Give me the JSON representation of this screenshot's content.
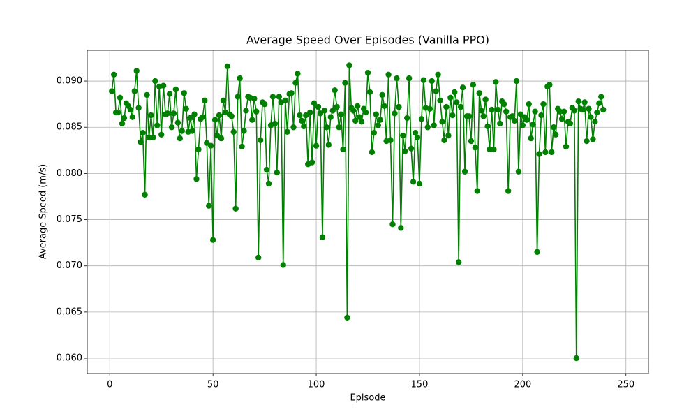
{
  "chart_data": {
    "type": "line",
    "title": "Average Speed Over Episodes (Vanilla PPO)",
    "x_label": "Episode",
    "y_label": "Average Speed (m/s)",
    "grid": true,
    "xlim": [
      -10.9,
      260.9
    ],
    "ylim": [
      0.05834,
      0.09333
    ],
    "xticks": [
      0,
      50,
      100,
      150,
      200,
      250
    ],
    "yticks": [
      {
        "value": 0.06,
        "label": "0.060"
      },
      0.065,
      {
        "value": 0.07,
        "label": "0.070"
      },
      0.075,
      {
        "value": 0.08,
        "label": "0.080"
      },
      0.085,
      {
        "value": 0.09,
        "label": "0.090"
      }
    ],
    "x": [
      1,
      2,
      3,
      4,
      5,
      6,
      7,
      8,
      9,
      10,
      11,
      12,
      13,
      14,
      15,
      16,
      17,
      18,
      19,
      20,
      21,
      22,
      23,
      24,
      25,
      26,
      27,
      28,
      29,
      30,
      31,
      32,
      33,
      34,
      35,
      36,
      37,
      38,
      39,
      40,
      41,
      42,
      43,
      44,
      45,
      46,
      47,
      48,
      49,
      50,
      51,
      52,
      53,
      54,
      55,
      56,
      57,
      58,
      59,
      60,
      61,
      62,
      63,
      64,
      65,
      66,
      67,
      68,
      69,
      70,
      71,
      72,
      73,
      74,
      75,
      76,
      77,
      78,
      79,
      80,
      81,
      82,
      83,
      84,
      85,
      86,
      87,
      88,
      89,
      90,
      91,
      92,
      93,
      94,
      95,
      96,
      97,
      98,
      99,
      100,
      101,
      102,
      103,
      104,
      105,
      106,
      107,
      108,
      109,
      110,
      111,
      112,
      113,
      114,
      115,
      116,
      117,
      118,
      119,
      120,
      121,
      122,
      123,
      124,
      125,
      126,
      127,
      128,
      129,
      130,
      131,
      132,
      133,
      134,
      135,
      136,
      137,
      138,
      139,
      140,
      141,
      142,
      143,
      144,
      145,
      146,
      147,
      148,
      149,
      150,
      151,
      152,
      153,
      154,
      155,
      156,
      157,
      158,
      159,
      160,
      161,
      162,
      163,
      164,
      165,
      166,
      167,
      168,
      169,
      170,
      171,
      172,
      173,
      174,
      175,
      176,
      177,
      178,
      179,
      180,
      181,
      182,
      183,
      184,
      185,
      186,
      187,
      188,
      189,
      190,
      191,
      192,
      193,
      194,
      195,
      196,
      197,
      198,
      199,
      200,
      201,
      202,
      203,
      204,
      205,
      206,
      207,
      208,
      209,
      210,
      211,
      212,
      213,
      214,
      215,
      216,
      217,
      218,
      219,
      220,
      221,
      222,
      223,
      224,
      225,
      226,
      227,
      228,
      229,
      230,
      231,
      232,
      233,
      234,
      235,
      236,
      237,
      238,
      239
    ],
    "series": [
      {
        "color": "#008000",
        "values": [
          0.0889,
          0.0907,
          0.0866,
          0.0866,
          0.0882,
          0.0854,
          0.086,
          0.0876,
          0.0873,
          0.0869,
          0.0861,
          0.0889,
          0.0911,
          0.0871,
          0.0834,
          0.0844,
          0.0777,
          0.0885,
          0.0839,
          0.0863,
          0.0839,
          0.09,
          0.0852,
          0.0894,
          0.0842,
          0.0895,
          0.0864,
          0.0865,
          0.0886,
          0.085,
          0.0865,
          0.0891,
          0.0855,
          0.0838,
          0.0846,
          0.0887,
          0.087,
          0.0845,
          0.086,
          0.0846,
          0.0864,
          0.0794,
          0.0826,
          0.0859,
          0.0861,
          0.0879,
          0.0833,
          0.0765,
          0.083,
          0.0728,
          0.0858,
          0.0841,
          0.0863,
          0.0838,
          0.0879,
          0.0866,
          0.0916,
          0.0864,
          0.0862,
          0.0845,
          0.0762,
          0.0883,
          0.0903,
          0.0829,
          0.0846,
          0.0868,
          0.0883,
          0.0882,
          0.0858,
          0.0881,
          0.0867,
          0.0709,
          0.0836,
          0.0877,
          0.0875,
          0.0804,
          0.0789,
          0.0852,
          0.0883,
          0.0854,
          0.0801,
          0.0883,
          0.0877,
          0.0701,
          0.0879,
          0.0845,
          0.0886,
          0.0887,
          0.085,
          0.0898,
          0.0908,
          0.0863,
          0.0857,
          0.0851,
          0.0863,
          0.081,
          0.0866,
          0.0812,
          0.0876,
          0.083,
          0.0872,
          0.0865,
          0.0731,
          0.0868,
          0.085,
          0.0831,
          0.0861,
          0.0868,
          0.089,
          0.0872,
          0.085,
          0.0864,
          0.0826,
          0.0898,
          0.0644,
          0.0917,
          0.0871,
          0.0868,
          0.0857,
          0.0873,
          0.0861,
          0.0856,
          0.087,
          0.0866,
          0.0909,
          0.0888,
          0.0823,
          0.0844,
          0.0864,
          0.0852,
          0.0858,
          0.0885,
          0.0873,
          0.0835,
          0.0907,
          0.0836,
          0.0745,
          0.0865,
          0.0903,
          0.0872,
          0.0741,
          0.0841,
          0.0824,
          0.086,
          0.0903,
          0.0827,
          0.0791,
          0.0844,
          0.0839,
          0.0789,
          0.0859,
          0.0901,
          0.0871,
          0.085,
          0.087,
          0.09,
          0.0852,
          0.0889,
          0.0907,
          0.0879,
          0.0856,
          0.0836,
          0.0872,
          0.0841,
          0.0882,
          0.0863,
          0.0888,
          0.0877,
          0.0704,
          0.0872,
          0.0893,
          0.0802,
          0.0862,
          0.0862,
          0.0835,
          0.0896,
          0.0828,
          0.0781,
          0.0887,
          0.0868,
          0.0862,
          0.088,
          0.0851,
          0.0826,
          0.0869,
          0.0826,
          0.0899,
          0.0869,
          0.0854,
          0.0878,
          0.0875,
          0.0867,
          0.0781,
          0.0861,
          0.0862,
          0.0857,
          0.09,
          0.0802,
          0.0864,
          0.0852,
          0.0861,
          0.0858,
          0.0875,
          0.0838,
          0.0853,
          0.0867,
          0.0715,
          0.0821,
          0.0863,
          0.0875,
          0.0823,
          0.0894,
          0.0896,
          0.0823,
          0.085,
          0.0842,
          0.087,
          0.0867,
          0.0859,
          0.0867,
          0.0829,
          0.0856,
          0.0854,
          0.0871,
          0.0868,
          0.06,
          0.0878,
          0.087,
          0.0869,
          0.0877,
          0.0835,
          0.087,
          0.0861,
          0.0837,
          0.0856,
          0.0866,
          0.0876,
          0.0883,
          0.0869
        ]
      }
    ]
  }
}
